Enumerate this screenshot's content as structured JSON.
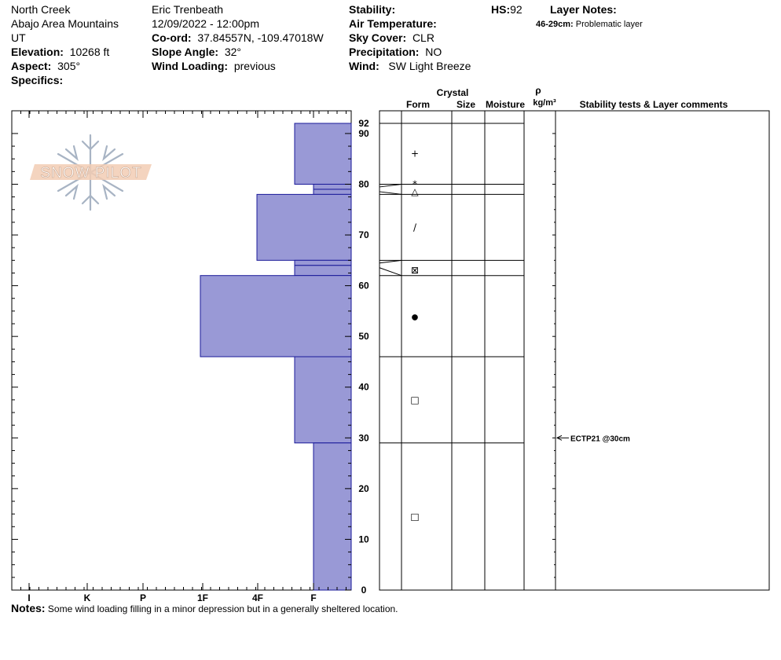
{
  "header": {
    "location": "North Creek",
    "range": "Abajo Area Mountains",
    "state": "UT",
    "elevation_label": "Elevation:",
    "elevation": "10268 ft",
    "aspect_label": "Aspect:",
    "aspect": "305°",
    "specifics_label": "Specifics:",
    "observer": "Eric Trenbeath",
    "datetime": "12/09/2022 - 12:00pm",
    "coord_label": "Co-ord:",
    "coord": "37.84557N, -109.47018W",
    "slope_label": "Slope Angle:",
    "slope": "32°",
    "wind_loading_label": "Wind Loading:",
    "wind_loading": "previous",
    "stability_label": "Stability:",
    "air_temp_label": "Air Temperature:",
    "sky_label": "Sky Cover:",
    "sky": "CLR",
    "precip_label": "Precipitation:",
    "precip": "NO",
    "wind_label": "Wind:",
    "wind": "SW Light Breeze",
    "hs_label": "HS:",
    "hs": "92",
    "layer_notes_label": "Layer Notes:",
    "layer_note_range": "46-29cm:",
    "layer_note_text": "Problematic layer"
  },
  "notes": {
    "label": "Notes:",
    "text": "Some wind loading filling in a minor depression but in a generally sheltered location."
  },
  "logo_text": "SNOW PILOT",
  "table_headers": {
    "crystal": "Crystal",
    "form": "Form",
    "size": "Size",
    "moisture": "Moisture",
    "rho": "ρ",
    "density_unit": "kg/m³",
    "comments": "Stability tests & Layer comments"
  },
  "colors": {
    "hardness_fill": "#9999d6",
    "hardness_stroke": "#1a1a99"
  },
  "chart_data": {
    "type": "bar",
    "ylim": [
      0,
      92
    ],
    "y_ticks": [
      0,
      10,
      20,
      30,
      40,
      50,
      60,
      70,
      80,
      90
    ],
    "hs_tick": "92",
    "hardness_scale": [
      "F",
      "4F",
      "1F",
      "P",
      "K",
      "I"
    ],
    "hardness_tick_labels": [
      "I",
      "K",
      "P",
      "1F",
      "4F",
      "F"
    ],
    "layers": [
      {
        "bottom": 80,
        "top": 92,
        "hardness": "F+",
        "form": "+"
      },
      {
        "bottom": 79,
        "top": 80,
        "hardness": "F",
        "form": "*"
      },
      {
        "bottom": 78,
        "top": 79,
        "hardness": "F",
        "form": "△"
      },
      {
        "bottom": 65,
        "top": 78,
        "hardness": "4F",
        "form": "/"
      },
      {
        "bottom": 64,
        "top": 65,
        "hardness": "F+",
        "form": ""
      },
      {
        "bottom": 62,
        "top": 64,
        "hardness": "F+",
        "form": "⊠"
      },
      {
        "bottom": 46,
        "top": 62,
        "hardness": "1F",
        "form": "●"
      },
      {
        "bottom": 29,
        "top": 46,
        "hardness": "F+",
        "form": "□"
      },
      {
        "bottom": 0,
        "top": 29,
        "hardness": "F",
        "form": "□"
      }
    ],
    "stability_tests": [
      {
        "depth": 30,
        "text": "ECTP21 @30cm"
      }
    ]
  }
}
